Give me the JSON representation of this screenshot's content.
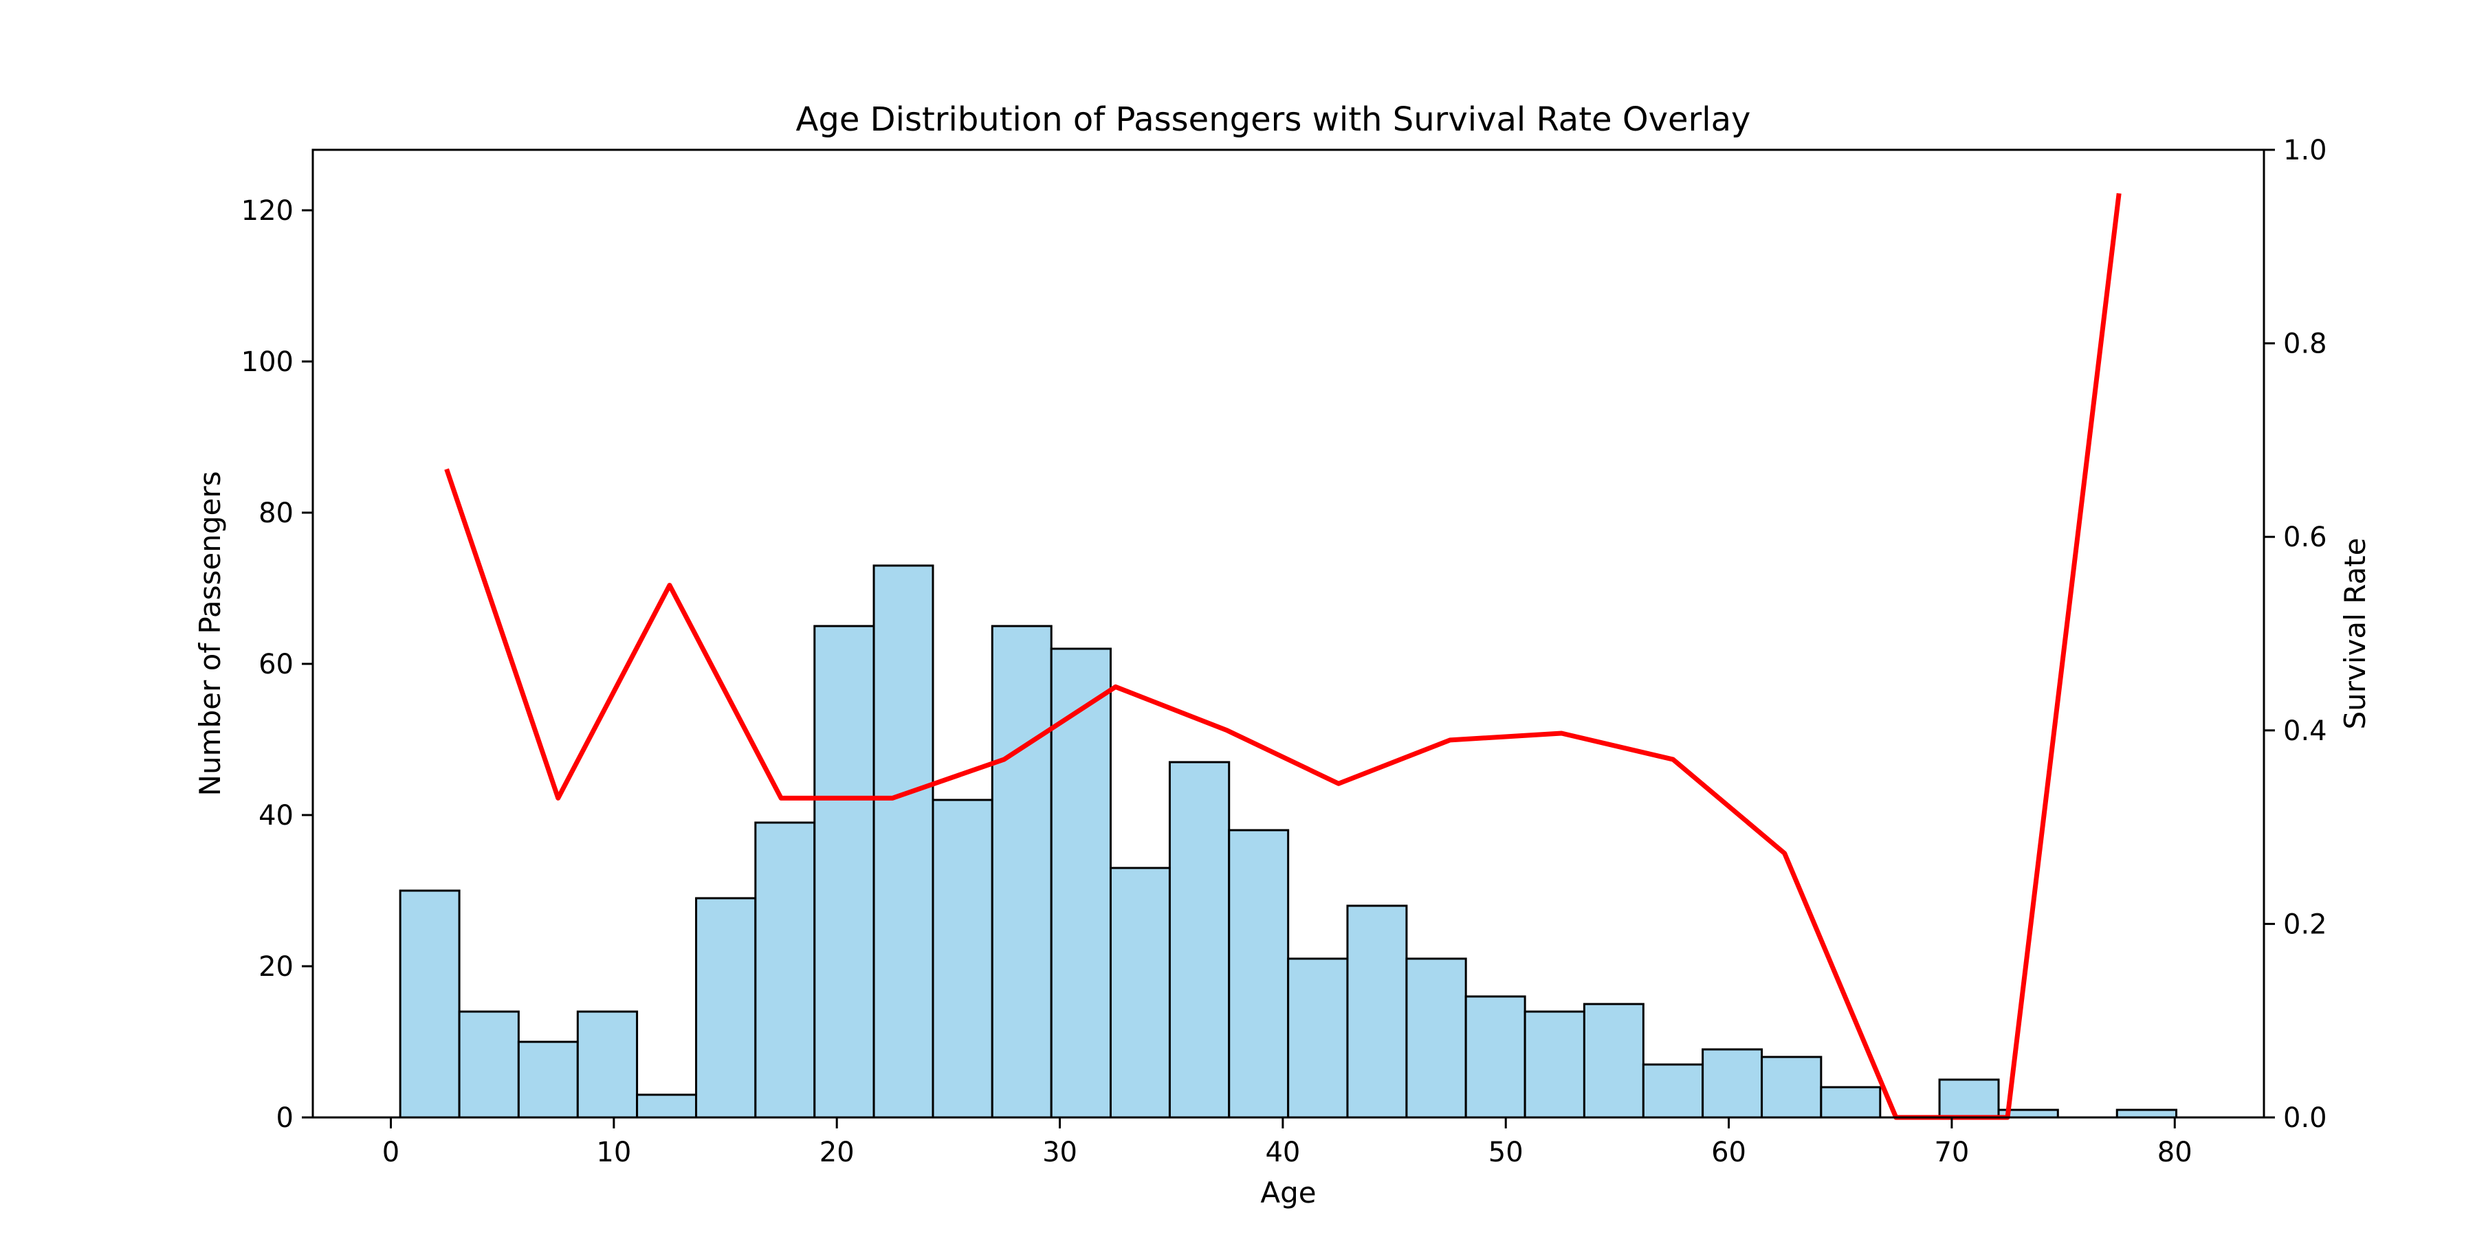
{
  "chart_data": {
    "type": "bar",
    "title": "Age Distribution of Passengers with Survival Rate Overlay",
    "xlabel": "Age",
    "ylabel": "Number of Passengers",
    "y2label": "Survival Rate",
    "xlim": [
      -3.5,
      84
    ],
    "ylim": [
      0,
      128
    ],
    "y2lim": [
      0,
      1.0
    ],
    "xticks": [
      0,
      10,
      20,
      30,
      40,
      50,
      60,
      70,
      80
    ],
    "yticks": [
      0,
      20,
      40,
      60,
      80,
      100,
      120
    ],
    "y2ticks": [
      0.0,
      0.2,
      0.4,
      0.6,
      0.8,
      1.0
    ],
    "y2tick_labels": [
      "0.0",
      "0.2",
      "0.4",
      "0.6",
      "0.8",
      "1.0"
    ],
    "grid": false,
    "histogram": {
      "name": "Number of Passengers",
      "color": "#a8d8ef",
      "edge_color": "#000000",
      "bin_edges": [
        0.42,
        3.07,
        5.73,
        8.38,
        11.04,
        13.69,
        16.35,
        19.0,
        21.66,
        24.31,
        26.97,
        29.62,
        32.28,
        34.93,
        37.59,
        40.24,
        42.9,
        45.55,
        48.21,
        50.86,
        53.52,
        56.17,
        58.83,
        61.48,
        64.14,
        66.79,
        69.45,
        72.1,
        74.76,
        77.41,
        80.07
      ],
      "counts": [
        30,
        14,
        10,
        14,
        3,
        29,
        39,
        65,
        73,
        42,
        65,
        62,
        33,
        47,
        38,
        21,
        28,
        21,
        16,
        14,
        15,
        7,
        9,
        8,
        4,
        0,
        5,
        1,
        0,
        1
      ]
    },
    "series": [
      {
        "name": "Survival Rate",
        "type": "line",
        "axis": "right",
        "color": "#ff0000",
        "x": [
          2.5,
          7.5,
          12.5,
          17.5,
          22.5,
          27.5,
          32.5,
          37.5,
          42.5,
          47.5,
          52.5,
          57.5,
          62.5,
          67.5,
          72.5,
          77.5
        ],
        "values": [
          0.67,
          0.33,
          0.55,
          0.33,
          0.33,
          0.37,
          0.445,
          0.4,
          0.345,
          0.39,
          0.397,
          0.37,
          0.273,
          0.0,
          0.0,
          0.955
        ]
      }
    ]
  }
}
